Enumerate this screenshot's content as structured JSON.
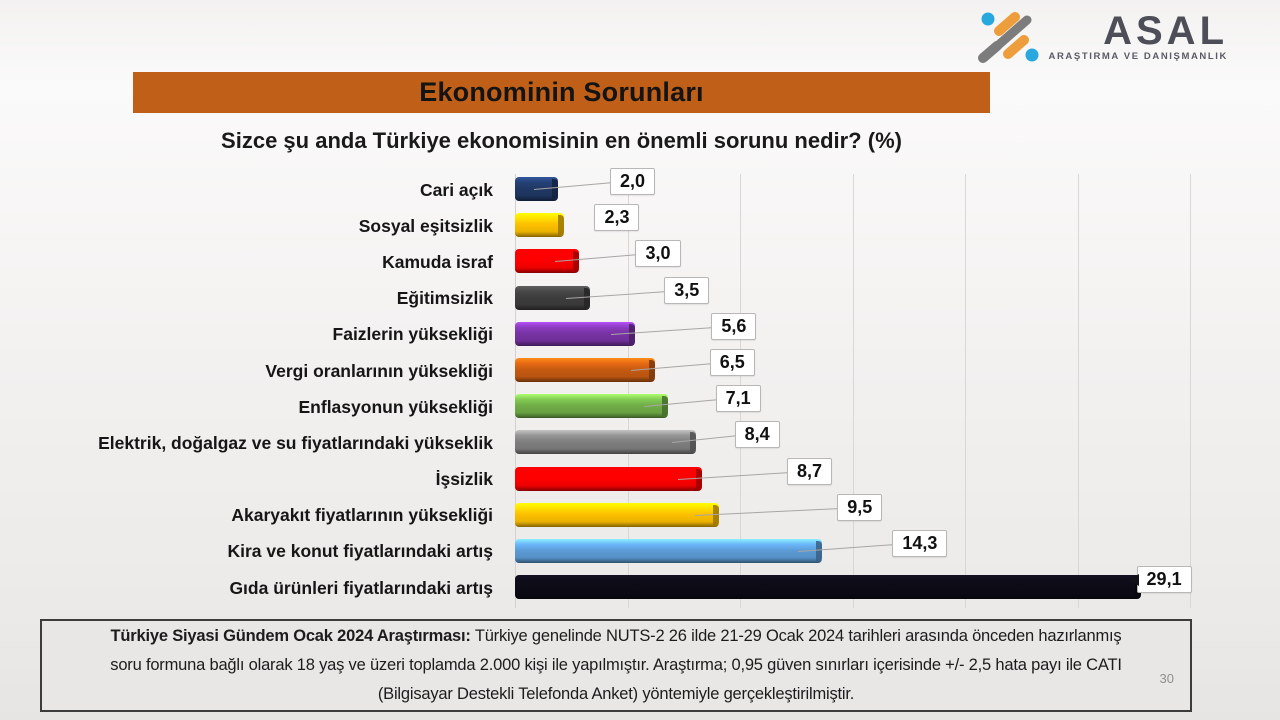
{
  "logo": {
    "name": "ASAL",
    "tagline": "ARAŞTIRMA VE DANIŞMANLIK",
    "icon": "asal-dumbbell-pattern-icon",
    "colors": {
      "orange": "#ee9d3d",
      "gray": "#7c7c7c",
      "blue": "#29a8e0",
      "text": "#4e4e59"
    }
  },
  "banner": {
    "title": "Ekonominin Sorunları",
    "bg_color": "#c05f17"
  },
  "question": "Sizce şu anda Türkiye ekonomisinin en önemli sorunu nedir? (%)",
  "chart_data": {
    "type": "bar",
    "orientation": "horizontal",
    "title": "Ekonominin Sorunları",
    "xlabel": "",
    "ylabel": "",
    "xlim": [
      0,
      31.4
    ],
    "grid": "vertical",
    "gridline_count": 6,
    "legend": "none",
    "categories": [
      "Cari açık",
      "Sosyal eşitsizlik",
      "Kamuda israf",
      "Eğitimsizlik",
      "Faizlerin yüksekliği",
      "Vergi oranlarının yüksekliği",
      "Enflasyonun yüksekliği",
      "Elektrik, doğalgaz ve su fiyatlarındaki yükseklik",
      "İşsizlik",
      "Akaryakıt fiyatlarının yüksekliği",
      "Kira ve konut fiyatlarındaki artış",
      "Gıda ürünleri fiyatlarındaki artış"
    ],
    "values": [
      2.0,
      2.3,
      3.0,
      3.5,
      5.6,
      6.5,
      7.1,
      8.4,
      8.7,
      9.5,
      14.3,
      29.1
    ],
    "value_labels": [
      "2,0",
      "2,3",
      "3,0",
      "3,5",
      "5,6",
      "6,5",
      "7,1",
      "8,4",
      "8,7",
      "9,5",
      "14,3",
      "29,1"
    ],
    "bar_colors": [
      "#1f3864",
      "#fcbf00",
      "#fe0000",
      "#3d3d3d",
      "#7733a3",
      "#c55a11",
      "#70ad47",
      "#7f7f7f",
      "#fe0000",
      "#fcbf00",
      "#5b9bd5",
      "#0c0b16"
    ]
  },
  "footer": {
    "bold_lead": "Türkiye Siyasi Gündem Ocak 2024 Araştırması:",
    "line1_rest": "Türkiye genelinde NUTS-2 26 ilde 21-29 Ocak 2024 tarihleri arasında önceden hazırlanmış",
    "line2": "soru formuna bağlı olarak 18 yaş ve üzeri toplamda 2.000 kişi ile yapılmıştır. Araştırma; 0,95 güven sınırları içerisinde +/- 2,5 hata payı ile CATI",
    "line3": "(Bilgisayar Destekli Telefonda Anket) yöntemiyle gerçekleştirilmiştir.",
    "page_number": "30"
  }
}
